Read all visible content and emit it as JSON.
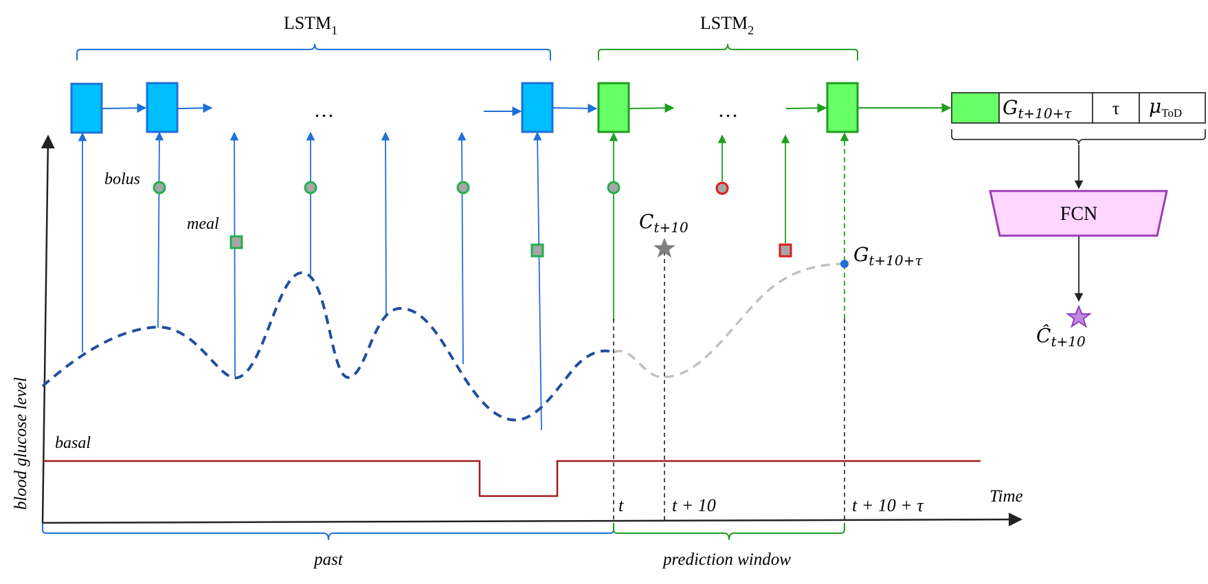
{
  "lstm1_label": "LSTM",
  "lstm1_sub": "1",
  "lstm2_label": "LSTM",
  "lstm2_sub": "2",
  "ellipsis": "…",
  "bolus_label": "bolus",
  "meal_label": "meal",
  "basal_label": "basal",
  "y_axis_label": "blood glucose level",
  "x_axis_label": "Time",
  "past_label": "past",
  "prediction_window_label": "prediction window",
  "tick_t": "t",
  "tick_t10": "t + 10",
  "tick_t10tau": "t + 10 + τ",
  "c_label": "C",
  "c_sub": "t+10",
  "g_label": "G",
  "g_sub": "t+10+τ",
  "chat_label": "Ĉ",
  "chat_sub": "t+10",
  "fcn_label": "FCN",
  "feature_vector": {
    "g_cell": "G",
    "g_cell_sub": "t+10+τ",
    "tau_cell": "τ",
    "mu_cell": "μ",
    "mu_cell_sub": "ToD"
  },
  "colors": {
    "lstm1_fill": "#00BFFF",
    "lstm1_stroke": "#1F6FD9",
    "lstm2_fill": "#66FF66",
    "lstm2_stroke": "#1F9E1F",
    "glucose_past": "#1F4E9E",
    "glucose_future": "#C0C0C0",
    "basal": "#9E1B1B",
    "fcn_fill": "#FFD6FF",
    "fcn_stroke": "#9B3FB5",
    "event_past": "#22B04B",
    "event_future": "#E31B1B",
    "star_true": "#7F7F7F",
    "star_pred": "#8E3FBF"
  }
}
